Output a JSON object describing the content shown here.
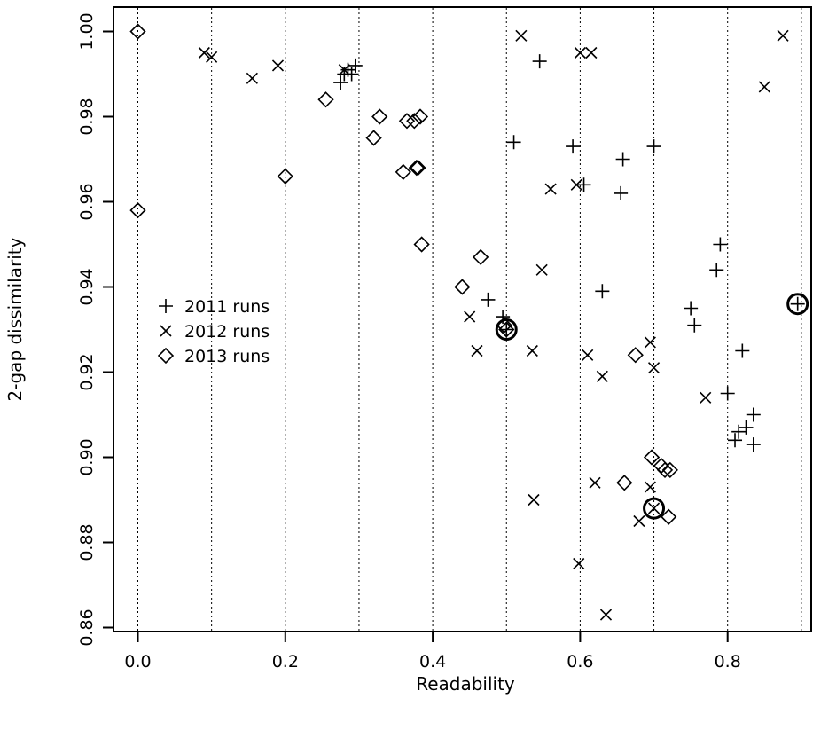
{
  "chart_data": {
    "type": "scatter",
    "title": "",
    "xlabel": "Readability",
    "ylabel": "2-gap dissimilarity",
    "xlim": [
      -0.04,
      0.92
    ],
    "ylim": [
      0.855,
      1.005
    ],
    "xticks": [
      "0.0",
      "0.2",
      "0.4",
      "0.6",
      "0.8"
    ],
    "yticks": [
      "0.86",
      "0.88",
      "0.90",
      "0.92",
      "0.94",
      "0.96",
      "0.98",
      "1.00"
    ],
    "grid": "vertical dotted lines every 0.1",
    "legend_position": "middle-left",
    "series": [
      {
        "name": "2011 runs",
        "marker": "plus",
        "points": [
          [
            0.275,
            0.988
          ],
          [
            0.28,
            0.99
          ],
          [
            0.285,
            0.991
          ],
          [
            0.29,
            0.99
          ],
          [
            0.295,
            0.992
          ],
          [
            0.545,
            0.993
          ],
          [
            0.51,
            0.974
          ],
          [
            0.59,
            0.973
          ],
          [
            0.605,
            0.964
          ],
          [
            0.655,
            0.962
          ],
          [
            0.658,
            0.97
          ],
          [
            0.7,
            0.973
          ],
          [
            0.475,
            0.937
          ],
          [
            0.495,
            0.933
          ],
          [
            0.63,
            0.939
          ],
          [
            0.75,
            0.935
          ],
          [
            0.755,
            0.931
          ],
          [
            0.785,
            0.944
          ],
          [
            0.79,
            0.95
          ],
          [
            0.8,
            0.915
          ],
          [
            0.82,
            0.925
          ],
          [
            0.81,
            0.904
          ],
          [
            0.815,
            0.906
          ],
          [
            0.825,
            0.907
          ],
          [
            0.835,
            0.91
          ],
          [
            0.835,
            0.903
          ],
          [
            0.895,
            0.936
          ],
          [
            0.5,
            0.93
          ]
        ]
      },
      {
        "name": "2012 runs",
        "marker": "cross",
        "points": [
          [
            0.09,
            0.995
          ],
          [
            0.1,
            0.994
          ],
          [
            0.155,
            0.989
          ],
          [
            0.19,
            0.992
          ],
          [
            0.28,
            0.991
          ],
          [
            0.52,
            0.999
          ],
          [
            0.6,
            0.995
          ],
          [
            0.615,
            0.995
          ],
          [
            0.875,
            0.999
          ],
          [
            0.85,
            0.987
          ],
          [
            0.56,
            0.963
          ],
          [
            0.595,
            0.964
          ],
          [
            0.548,
            0.944
          ],
          [
            0.45,
            0.933
          ],
          [
            0.46,
            0.925
          ],
          [
            0.535,
            0.925
          ],
          [
            0.61,
            0.924
          ],
          [
            0.63,
            0.919
          ],
          [
            0.695,
            0.927
          ],
          [
            0.7,
            0.921
          ],
          [
            0.77,
            0.914
          ],
          [
            0.537,
            0.89
          ],
          [
            0.62,
            0.894
          ],
          [
            0.68,
            0.885
          ],
          [
            0.695,
            0.893
          ],
          [
            0.7,
            0.888
          ],
          [
            0.598,
            0.875
          ],
          [
            0.635,
            0.863
          ]
        ]
      },
      {
        "name": "2013 runs",
        "marker": "diamond",
        "points": [
          [
            0.0,
            1.0
          ],
          [
            0.0,
            0.958
          ],
          [
            0.2,
            0.966
          ],
          [
            0.255,
            0.984
          ],
          [
            0.32,
            0.975
          ],
          [
            0.328,
            0.98
          ],
          [
            0.36,
            0.967
          ],
          [
            0.365,
            0.979
          ],
          [
            0.375,
            0.979
          ],
          [
            0.378,
            0.968
          ],
          [
            0.38,
            0.968
          ],
          [
            0.383,
            0.98
          ],
          [
            0.385,
            0.95
          ],
          [
            0.44,
            0.94
          ],
          [
            0.465,
            0.947
          ],
          [
            0.497,
            0.931
          ],
          [
            0.5,
            0.93
          ],
          [
            0.675,
            0.924
          ],
          [
            0.66,
            0.894
          ],
          [
            0.697,
            0.9
          ],
          [
            0.71,
            0.898
          ],
          [
            0.715,
            0.897
          ],
          [
            0.722,
            0.897
          ],
          [
            0.72,
            0.886
          ]
        ]
      }
    ],
    "highlighted": [
      [
        0.5,
        0.93
      ],
      [
        0.7,
        0.888
      ],
      [
        0.895,
        0.936
      ]
    ]
  }
}
